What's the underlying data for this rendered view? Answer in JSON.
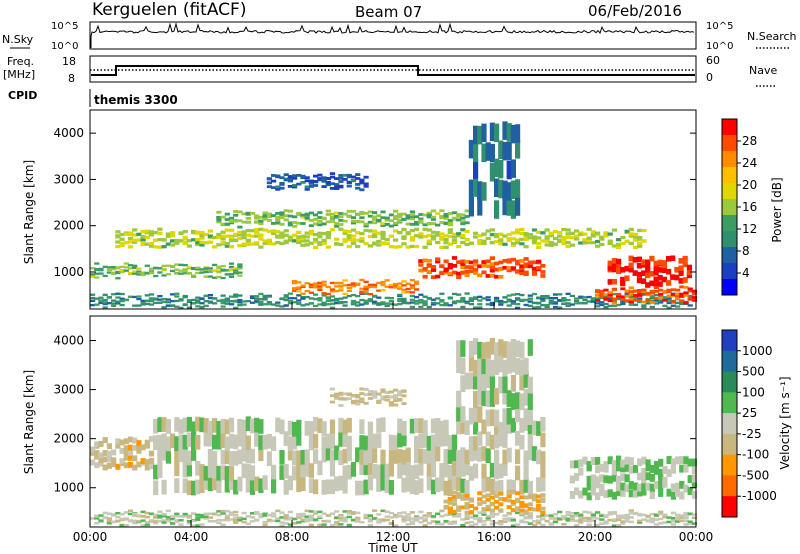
{
  "header": {
    "radar": "Kerguelen (fitACF)",
    "beam": "Beam 07",
    "date": "06/Feb/2016"
  },
  "nsky_panel": {
    "left_label": "N.Sky",
    "right_label": "N.Search",
    "left_ticks": [
      "10^5",
      "10^0"
    ],
    "right_ticks": [
      "10^5",
      "10^0"
    ]
  },
  "freq_panel": {
    "left_label_1": "Freq.",
    "left_label_2": "[MHz]",
    "right_label": "Nave",
    "left_ticks": [
      "18",
      "8"
    ],
    "right_ticks": [
      "60",
      "0"
    ],
    "cpid_label": "CPID",
    "cpid_value": "themis 3300"
  },
  "colorbars": {
    "power": {
      "label": "Power [dB]",
      "ticks": [
        "28",
        "24",
        "20",
        "16",
        "12",
        "8",
        "4"
      ],
      "colors": [
        "#ff0000",
        "#ff4a00",
        "#ff8c00",
        "#ffbe00",
        "#e0d700",
        "#9bc83c",
        "#3c9c64",
        "#2f8f6e",
        "#2060a0",
        "#1a3fbf",
        "#0000ff"
      ]
    },
    "velocity": {
      "label": "Velocity [m s⁻¹]",
      "ticks": [
        "1000",
        "500",
        "100",
        "25",
        "-25",
        "-100",
        "-500",
        "-1000"
      ],
      "colors": [
        "#2040c0",
        "#1e6a9a",
        "#2a8a5a",
        "#4fb84f",
        "#c8c8b8",
        "#c8b880",
        "#ff9800",
        "#ff6a00",
        "#ff0000"
      ]
    }
  },
  "chart_data": [
    {
      "type": "heatmap",
      "name": "power",
      "xlabel": "",
      "ylabel": "Slant Range [km]",
      "xlim": [
        "00:00",
        "24:00"
      ],
      "ylim": [
        200,
        4500
      ],
      "yticks": [
        1000,
        2000,
        3000,
        4000
      ],
      "colorbar_label": "Power [dB]",
      "colorbar_range": [
        0,
        30
      ],
      "bands": [
        {
          "t0": 0.0,
          "t1": 24.0,
          "r0": 250,
          "r1": 500,
          "value": 10
        },
        {
          "t0": 0.0,
          "t1": 6.0,
          "r0": 900,
          "r1": 1150,
          "value": 14
        },
        {
          "t0": 1.0,
          "t1": 22.0,
          "r0": 1550,
          "r1": 1900,
          "value": 16
        },
        {
          "t0": 5.0,
          "t1": 15.0,
          "r0": 2000,
          "r1": 2300,
          "value": 14
        },
        {
          "t0": 8.0,
          "t1": 13.0,
          "r0": 550,
          "r1": 800,
          "value": 24
        },
        {
          "t0": 13.0,
          "t1": 18.0,
          "r0": 900,
          "r1": 1300,
          "value": 26
        },
        {
          "t0": 20.5,
          "t1": 23.8,
          "r0": 700,
          "r1": 1300,
          "value": 28
        },
        {
          "t0": 20.0,
          "t1": 24.0,
          "r0": 350,
          "r1": 650,
          "value": 26
        },
        {
          "t0": 15.0,
          "t1": 17.0,
          "r0": 2200,
          "r1": 4200,
          "value": 8
        },
        {
          "t0": 7.0,
          "t1": 11.0,
          "r0": 2800,
          "r1": 3100,
          "value": 6
        }
      ]
    },
    {
      "type": "heatmap",
      "name": "velocity",
      "xlabel": "Time UT",
      "ylabel": "Slant Range [km]",
      "xlim": [
        "00:00",
        "24:00"
      ],
      "xticks": [
        "00:00",
        "04:00",
        "08:00",
        "12:00",
        "16:00",
        "20:00",
        "00:00"
      ],
      "ylim": [
        200,
        4500
      ],
      "yticks": [
        1000,
        2000,
        3000,
        4000
      ],
      "colorbar_label": "Velocity [m s⁻¹]",
      "colorbar_range": [
        -1000,
        1000
      ],
      "bands": [
        {
          "t0": 0.0,
          "t1": 24.0,
          "r0": 250,
          "r1": 500,
          "value": 0
        },
        {
          "t0": 0.0,
          "t1": 2.5,
          "r0": 1400,
          "r1": 2000,
          "value": -200
        },
        {
          "t0": 2.5,
          "t1": 18.0,
          "r0": 900,
          "r1": 2400,
          "value": 0
        },
        {
          "t0": 14.0,
          "t1": 18.0,
          "r0": 500,
          "r1": 900,
          "value": -300
        },
        {
          "t0": 19.0,
          "t1": 24.0,
          "r0": 800,
          "r1": 1600,
          "value": 120
        },
        {
          "t0": 9.5,
          "t1": 12.5,
          "r0": 2700,
          "r1": 3000,
          "value": -150
        },
        {
          "t0": 14.5,
          "t1": 17.5,
          "r0": 2300,
          "r1": 4000,
          "value": 0
        }
      ]
    }
  ],
  "xaxis": {
    "title": "Time UT",
    "ticks": [
      "00:00",
      "04:00",
      "08:00",
      "12:00",
      "16:00",
      "20:00",
      "00:00"
    ]
  }
}
